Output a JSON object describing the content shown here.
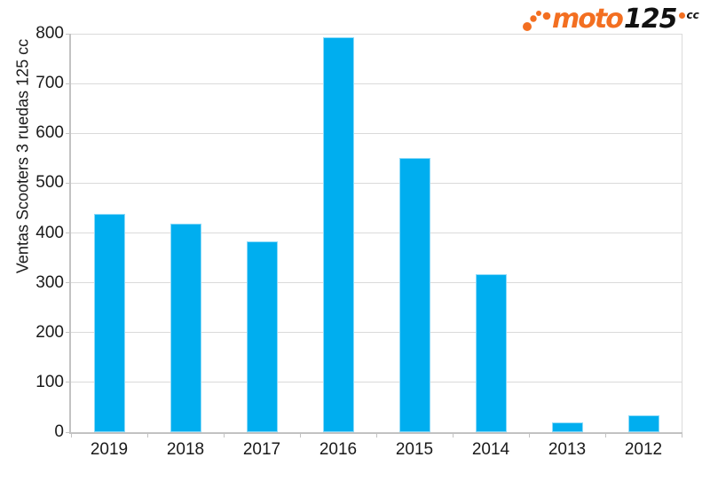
{
  "logo": {
    "brand": "moto125.cc",
    "text_moto": "moto",
    "text_125": "125",
    "text_cc": "cc",
    "orange": "#F36F21",
    "black": "#111111"
  },
  "chart_data": {
    "type": "bar",
    "title": "",
    "xlabel": "",
    "ylabel": "Ventas Scooters 3 ruedas 125 cc",
    "categories": [
      "2019",
      "2018",
      "2017",
      "2016",
      "2015",
      "2014",
      "2013",
      "2012"
    ],
    "values": [
      438,
      418,
      383,
      792,
      551,
      318,
      20,
      34
    ],
    "ylim": [
      0,
      800
    ],
    "yticks": [
      0,
      100,
      200,
      300,
      400,
      500,
      600,
      700,
      800
    ],
    "grid": true,
    "legend": false,
    "bar_color": "#00AEEF",
    "bar_edge_color": "rgba(255,255,255,0.55)",
    "gridline_color": "#DADADA",
    "axis_color": "#C2C2C2",
    "text_color": "#1A1A1A",
    "background": "#FFFFFF"
  }
}
